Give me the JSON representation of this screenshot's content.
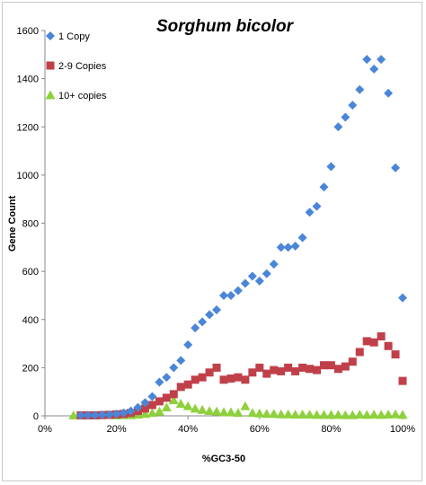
{
  "chart_data": {
    "type": "scatter",
    "title": "Sorghum bicolor",
    "xlabel": "%GC3-50",
    "ylabel": "Gene Count",
    "xlim": [
      0,
      100
    ],
    "ylim": [
      0,
      1600
    ],
    "x_ticks": [
      0,
      20,
      40,
      60,
      80,
      100
    ],
    "x_tick_labels": [
      "0%",
      "20%",
      "40%",
      "60%",
      "80%",
      "100%"
    ],
    "y_ticks": [
      0,
      200,
      400,
      600,
      800,
      1000,
      1200,
      1400,
      1600
    ],
    "y_tick_labels": [
      "0",
      "200",
      "400",
      "600",
      "800",
      "1000",
      "1200",
      "1400",
      "1600"
    ],
    "grid": false,
    "legend_position": "top-left",
    "series": [
      {
        "name": "1 Copy",
        "marker": "diamond",
        "color": "#4A86D8",
        "points": [
          [
            10,
            2
          ],
          [
            12,
            3
          ],
          [
            14,
            3
          ],
          [
            16,
            4
          ],
          [
            18,
            5
          ],
          [
            20,
            8
          ],
          [
            22,
            12
          ],
          [
            24,
            20
          ],
          [
            26,
            35
          ],
          [
            28,
            55
          ],
          [
            30,
            80
          ],
          [
            32,
            140
          ],
          [
            34,
            160
          ],
          [
            36,
            200
          ],
          [
            38,
            230
          ],
          [
            40,
            295
          ],
          [
            42,
            365
          ],
          [
            44,
            390
          ],
          [
            46,
            420
          ],
          [
            48,
            440
          ],
          [
            50,
            500
          ],
          [
            52,
            500
          ],
          [
            54,
            520
          ],
          [
            56,
            550
          ],
          [
            58,
            580
          ],
          [
            60,
            560
          ],
          [
            62,
            590
          ],
          [
            64,
            630
          ],
          [
            66,
            700
          ],
          [
            68,
            700
          ],
          [
            70,
            705
          ],
          [
            72,
            740
          ],
          [
            74,
            845
          ],
          [
            76,
            870
          ],
          [
            78,
            950
          ],
          [
            80,
            1035
          ],
          [
            82,
            1200
          ],
          [
            84,
            1240
          ],
          [
            86,
            1290
          ],
          [
            88,
            1355
          ],
          [
            90,
            1480
          ],
          [
            92,
            1440
          ],
          [
            94,
            1480
          ],
          [
            96,
            1340
          ],
          [
            98,
            1030
          ],
          [
            100,
            490
          ]
        ]
      },
      {
        "name": "2-9 Copies",
        "marker": "square",
        "color": "#C0404A",
        "points": [
          [
            10,
            2
          ],
          [
            12,
            2
          ],
          [
            14,
            2
          ],
          [
            16,
            3
          ],
          [
            18,
            4
          ],
          [
            20,
            6
          ],
          [
            22,
            8
          ],
          [
            24,
            12
          ],
          [
            26,
            20
          ],
          [
            28,
            30
          ],
          [
            30,
            45
          ],
          [
            32,
            60
          ],
          [
            34,
            75
          ],
          [
            36,
            90
          ],
          [
            38,
            120
          ],
          [
            40,
            130
          ],
          [
            42,
            150
          ],
          [
            44,
            160
          ],
          [
            46,
            180
          ],
          [
            48,
            200
          ],
          [
            50,
            150
          ],
          [
            52,
            155
          ],
          [
            54,
            160
          ],
          [
            56,
            150
          ],
          [
            58,
            180
          ],
          [
            60,
            200
          ],
          [
            62,
            175
          ],
          [
            64,
            190
          ],
          [
            66,
            185
          ],
          [
            68,
            200
          ],
          [
            70,
            185
          ],
          [
            72,
            200
          ],
          [
            74,
            195
          ],
          [
            76,
            190
          ],
          [
            78,
            210
          ],
          [
            80,
            210
          ],
          [
            82,
            195
          ],
          [
            84,
            205
          ],
          [
            86,
            225
          ],
          [
            88,
            265
          ],
          [
            90,
            310
          ],
          [
            92,
            305
          ],
          [
            94,
            330
          ],
          [
            96,
            290
          ],
          [
            98,
            255
          ],
          [
            100,
            145
          ]
        ]
      },
      {
        "name": "10+ copies",
        "marker": "triangle",
        "color": "#8ED13C",
        "points": [
          [
            8,
            2
          ],
          [
            20,
            2
          ],
          [
            22,
            3
          ],
          [
            24,
            3
          ],
          [
            26,
            5
          ],
          [
            28,
            8
          ],
          [
            30,
            12
          ],
          [
            32,
            18
          ],
          [
            34,
            35
          ],
          [
            36,
            65
          ],
          [
            38,
            50
          ],
          [
            40,
            40
          ],
          [
            42,
            30
          ],
          [
            44,
            25
          ],
          [
            46,
            20
          ],
          [
            48,
            18
          ],
          [
            50,
            15
          ],
          [
            52,
            15
          ],
          [
            54,
            12
          ],
          [
            56,
            40
          ],
          [
            58,
            12
          ],
          [
            60,
            10
          ],
          [
            62,
            8
          ],
          [
            64,
            8
          ],
          [
            66,
            6
          ],
          [
            68,
            6
          ],
          [
            70,
            5
          ],
          [
            72,
            5
          ],
          [
            74,
            5
          ],
          [
            76,
            4
          ],
          [
            78,
            4
          ],
          [
            80,
            4
          ],
          [
            82,
            4
          ],
          [
            84,
            3
          ],
          [
            86,
            3
          ],
          [
            88,
            5
          ],
          [
            90,
            4
          ],
          [
            92,
            5
          ],
          [
            94,
            4
          ],
          [
            96,
            5
          ],
          [
            98,
            6
          ],
          [
            100,
            4
          ]
        ]
      }
    ]
  }
}
